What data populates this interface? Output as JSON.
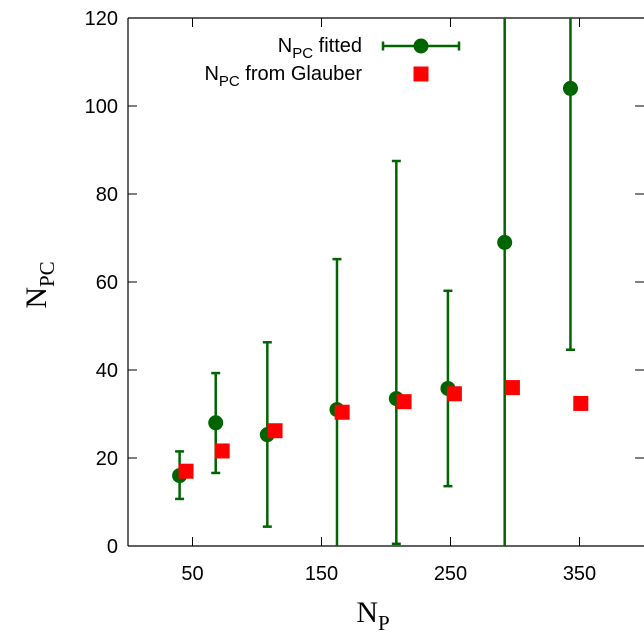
{
  "chart_data": {
    "type": "scatter",
    "xlabel": {
      "base": "N",
      "sub": "P"
    },
    "ylabel": {
      "base": "N",
      "sub": "PC"
    },
    "xlim": [
      0,
      400
    ],
    "ylim": [
      0,
      120
    ],
    "x_ticks": [
      50,
      150,
      250,
      350
    ],
    "y_ticks": [
      0,
      20,
      40,
      60,
      80,
      100,
      120
    ],
    "grid": false,
    "legend_position": "top-right",
    "series": [
      {
        "name": {
          "base": "N",
          "sub": "PC",
          "rest": " fitted"
        },
        "marker": "circle",
        "color": "#006400",
        "points": [
          {
            "x": 40,
            "y": 16,
            "low": 10.7,
            "high": 21.5
          },
          {
            "x": 68,
            "y": 28,
            "low": 16.6,
            "high": 39.3
          },
          {
            "x": 108,
            "y": 25.3,
            "low": 4.4,
            "high": 46.3
          },
          {
            "x": 162,
            "y": 31,
            "low": 0,
            "high": 65.2
          },
          {
            "x": 208,
            "y": 33.5,
            "low": 0.5,
            "high": 87.5
          },
          {
            "x": 248,
            "y": 35.8,
            "low": 13.6,
            "high": 58
          },
          {
            "x": 292,
            "y": 69,
            "low": 0,
            "high": 120
          },
          {
            "x": 343,
            "y": 104,
            "low": 44.6,
            "high": 120
          }
        ]
      },
      {
        "name": {
          "base": "N",
          "sub": "PC",
          "rest": " from Glauber"
        },
        "marker": "square",
        "color": "#ff0000",
        "points": [
          {
            "x": 45,
            "y": 17
          },
          {
            "x": 73,
            "y": 21.6
          },
          {
            "x": 114,
            "y": 26.2
          },
          {
            "x": 166,
            "y": 30.4
          },
          {
            "x": 214,
            "y": 32.8
          },
          {
            "x": 253,
            "y": 34.6
          },
          {
            "x": 298,
            "y": 36
          },
          {
            "x": 351,
            "y": 32.4
          }
        ]
      }
    ]
  }
}
